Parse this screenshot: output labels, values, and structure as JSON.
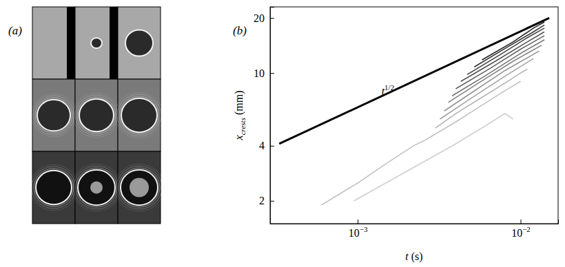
{
  "figure": {
    "panel_labels": [
      "(a)",
      "(b)"
    ]
  },
  "chart_data": {
    "type": "line",
    "log": true,
    "grid": false,
    "x_label": {
      "text": "t",
      "suffix": " (s)"
    },
    "y_label": {
      "text": "x",
      "subscript": "crests",
      "suffix": " (mm)"
    },
    "xlim": [
      0.00029,
      0.017
    ],
    "ylim": [
      1.5,
      23
    ],
    "xticks": [
      {
        "value": 0.001,
        "label": "10",
        "exponent": "−3"
      },
      {
        "value": 0.01,
        "label": "10",
        "exponent": "−2"
      }
    ],
    "yticks": [
      2,
      4,
      10,
      20
    ],
    "annotations": [
      {
        "text": "t",
        "superscript": "1/2",
        "x": 0.0014,
        "y": 7.6
      }
    ],
    "series": [
      {
        "color": "#000000",
        "x": [
          0.00033,
          0.015
        ],
        "values": [
          4.1,
          20
        ]
      },
      {
        "color": "#cfcfcf",
        "x": [
          0.00095,
          0.002,
          0.004,
          0.006,
          0.008,
          0.009
        ],
        "values": [
          2.0,
          2.9,
          4.1,
          5.1,
          6.0,
          5.6
        ]
      },
      {
        "color": "#c2c2c2",
        "x": [
          0.0006,
          0.001,
          0.0015,
          0.0022,
          0.0026,
          0.004,
          0.006,
          0.008,
          0.01
        ],
        "values": [
          1.9,
          2.5,
          3.2,
          4.0,
          4.3,
          5.4,
          6.8,
          8.0,
          9.0
        ]
      },
      {
        "color": "#b3b3b3",
        "x": [
          0.003,
          0.004,
          0.006,
          0.008,
          0.01,
          0.011
        ],
        "values": [
          5.0,
          6.0,
          7.5,
          8.8,
          10.0,
          10.5
        ]
      },
      {
        "color": "#a3a3a3",
        "x": [
          0.0032,
          0.005,
          0.008,
          0.012
        ],
        "values": [
          5.6,
          7.3,
          9.6,
          12.0
        ]
      },
      {
        "color": "#939393",
        "x": [
          0.0034,
          0.005,
          0.008,
          0.013
        ],
        "values": [
          6.2,
          7.8,
          10.3,
          13.2
        ]
      },
      {
        "color": "#838383",
        "x": [
          0.0036,
          0.0055,
          0.009,
          0.0135
        ],
        "values": [
          6.9,
          8.8,
          11.6,
          14.2
        ]
      },
      {
        "color": "#737373",
        "x": [
          0.0038,
          0.006,
          0.01,
          0.014
        ],
        "values": [
          7.5,
          9.6,
          12.8,
          15.2
        ]
      },
      {
        "color": "#636363",
        "x": [
          0.004,
          0.0065,
          0.01,
          0.014
        ],
        "values": [
          8.2,
          10.6,
          13.5,
          16.0
        ]
      },
      {
        "color": "#535353",
        "x": [
          0.0043,
          0.007,
          0.011,
          0.014
        ],
        "values": [
          9.0,
          11.6,
          14.8,
          16.8
        ]
      },
      {
        "color": "#434343",
        "x": [
          0.0047,
          0.0075,
          0.011,
          0.014
        ],
        "values": [
          9.8,
          12.6,
          15.6,
          17.6
        ]
      },
      {
        "color": "#333333",
        "x": [
          0.0052,
          0.008,
          0.012,
          0.014
        ],
        "values": [
          10.8,
          13.6,
          16.8,
          18.3
        ]
      },
      {
        "color": "#232323",
        "x": [
          0.0058,
          0.009,
          0.012,
          0.014
        ],
        "values": [
          11.8,
          14.8,
          17.6,
          19.0
        ]
      }
    ]
  }
}
